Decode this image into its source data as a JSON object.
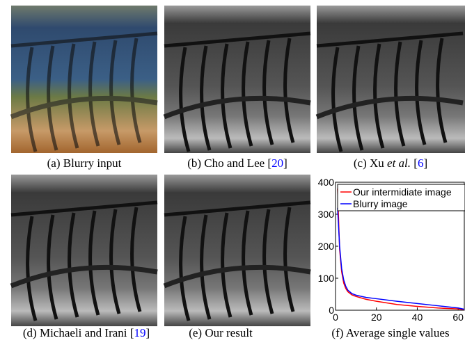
{
  "panels": [
    {
      "segments": [
        {
          "text": "(a) Blurry input",
          "style": "normal"
        }
      ]
    },
    {
      "segments": [
        {
          "text": "(b) Cho and Lee [",
          "style": "normal"
        },
        {
          "text": "20",
          "style": "ref"
        },
        {
          "text": "]",
          "style": "normal"
        }
      ]
    },
    {
      "segments": [
        {
          "text": "(c) Xu ",
          "style": "normal"
        },
        {
          "text": "et al.",
          "style": "italic"
        },
        {
          "text": " [",
          "style": "normal"
        },
        {
          "text": "6",
          "style": "ref"
        },
        {
          "text": "]",
          "style": "normal"
        }
      ]
    },
    {
      "segments": [
        {
          "text": "(d) Michaeli and Irani [",
          "style": "normal"
        },
        {
          "text": "19",
          "style": "ref"
        },
        {
          "text": "]",
          "style": "normal"
        }
      ]
    },
    {
      "segments": [
        {
          "text": "(e) Our result",
          "style": "normal"
        }
      ]
    },
    {
      "segments": [
        {
          "text": "(f) Average single values",
          "style": "normal"
        }
      ]
    }
  ],
  "chart_data": {
    "type": "line",
    "x": [
      1,
      2,
      3,
      4,
      5,
      6,
      8,
      10,
      15,
      20,
      30,
      40,
      50,
      60,
      63
    ],
    "series": [
      {
        "name": "Our intermidiate image",
        "color": "#ff0000",
        "values": [
          380,
          190,
          120,
          85,
          68,
          58,
          48,
          43,
          34,
          28,
          18,
          12,
          7,
          4,
          2
        ]
      },
      {
        "name": "Blurry image",
        "color": "#0000ff",
        "values": [
          320,
          200,
          130,
          95,
          75,
          63,
          52,
          47,
          40,
          36,
          28,
          21,
          14,
          7,
          3
        ]
      }
    ],
    "xlim": [
      0,
      63
    ],
    "ylim": [
      0,
      400
    ],
    "xticks": [
      0,
      20,
      40,
      60
    ],
    "yticks": [
      0,
      100,
      200,
      300,
      400
    ],
    "legend": "upper right"
  }
}
